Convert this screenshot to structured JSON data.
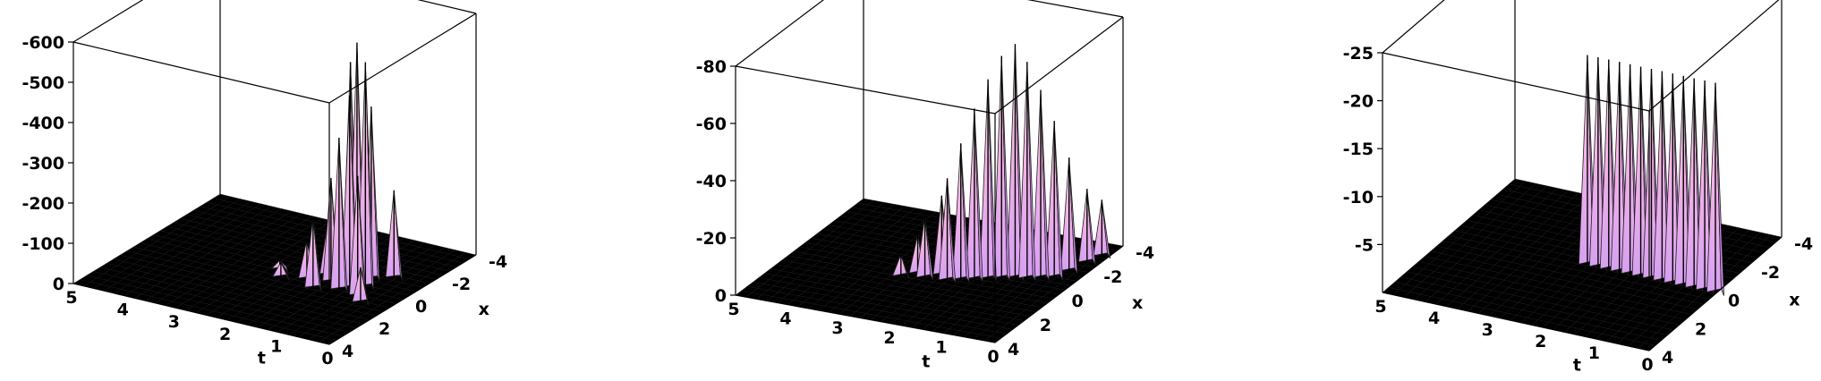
{
  "chart_data": [
    {
      "type": "surface3d",
      "t_ticks": [
        "5",
        "4",
        "3",
        "2",
        "1",
        "0"
      ],
      "x_ticks": [
        "-4",
        "-2",
        "0",
        "2",
        "4"
      ],
      "z_ticks": [
        "0",
        "-100",
        "-200",
        "-300",
        "-400",
        "-500",
        "-600"
      ],
      "t_label": "t",
      "x_label": "x",
      "t_range": [
        0,
        5
      ],
      "x_range": [
        -4,
        4
      ],
      "z_range": [
        0,
        -600
      ],
      "peaks": [
        {
          "t": 1.0,
          "x": -0.3,
          "z": -600
        },
        {
          "t": 0.8,
          "x": -0.2,
          "z": -560
        },
        {
          "t": 1.2,
          "x": -0.5,
          "z": -540
        },
        {
          "t": 1.0,
          "x": 0.1,
          "z": -480
        },
        {
          "t": 0.9,
          "x": -0.8,
          "z": -430
        },
        {
          "t": 1.1,
          "x": 0.4,
          "z": -380
        },
        {
          "t": 1.3,
          "x": -0.9,
          "z": -350
        },
        {
          "t": 0.7,
          "x": 0.5,
          "z": -300
        },
        {
          "t": 1.4,
          "x": 0.0,
          "z": -260
        },
        {
          "t": 0.6,
          "x": -1.2,
          "z": -220
        },
        {
          "t": 1.5,
          "x": 0.7,
          "z": -180
        },
        {
          "t": 1.6,
          "x": -0.4,
          "z": -140
        },
        {
          "t": 1.8,
          "x": 0.2,
          "z": -100
        },
        {
          "t": 0.5,
          "x": 0.9,
          "z": -90
        },
        {
          "t": 2.0,
          "x": -0.6,
          "z": -60
        },
        {
          "t": 2.2,
          "x": 0.5,
          "z": -40
        },
        {
          "t": 2.4,
          "x": 0.0,
          "z": -25
        }
      ]
    },
    {
      "type": "surface3d",
      "t_ticks": [
        "5",
        "4",
        "3",
        "2",
        "1",
        "0"
      ],
      "x_ticks": [
        "-4",
        "-2",
        "0",
        "2",
        "4"
      ],
      "z_ticks": [
        "0",
        "-20",
        "-40",
        "-60",
        "-80"
      ],
      "t_label": "t",
      "x_label": "x",
      "t_range": [
        0,
        5
      ],
      "x_range": [
        -4,
        4
      ],
      "z_range": [
        0,
        -80
      ],
      "peaks": [
        {
          "t": 1.0,
          "x": -0.5,
          "z": -82
        },
        {
          "t": 1.2,
          "x": -0.3,
          "z": -78
        },
        {
          "t": 0.8,
          "x": -0.6,
          "z": -76
        },
        {
          "t": 1.4,
          "x": -0.1,
          "z": -70
        },
        {
          "t": 0.6,
          "x": -0.8,
          "z": -66
        },
        {
          "t": 1.6,
          "x": 0.1,
          "z": -60
        },
        {
          "t": 0.4,
          "x": -1.0,
          "z": -55
        },
        {
          "t": 1.8,
          "x": 0.3,
          "z": -48
        },
        {
          "t": 0.3,
          "x": -1.6,
          "z": -40
        },
        {
          "t": 2.0,
          "x": 0.5,
          "z": -36
        },
        {
          "t": 2.2,
          "x": 0.2,
          "z": -28
        },
        {
          "t": 0.2,
          "x": -2.4,
          "z": -26
        },
        {
          "t": 2.4,
          "x": 0.6,
          "z": -22
        },
        {
          "t": 0.1,
          "x": -3.0,
          "z": -20
        },
        {
          "t": 2.6,
          "x": 0.4,
          "z": -14
        },
        {
          "t": 2.8,
          "x": 0.8,
          "z": -8
        }
      ]
    },
    {
      "type": "surface3d",
      "t_ticks": [
        "5",
        "4",
        "3",
        "2",
        "1",
        "0"
      ],
      "x_ticks": [
        "-4",
        "-2",
        "0",
        "2",
        "4"
      ],
      "z_ticks": [
        "-5",
        "-10",
        "-15",
        "-20",
        "-25"
      ],
      "t_label": "t",
      "x_label": "x",
      "t_range": [
        0,
        5
      ],
      "x_range": [
        -4,
        4
      ],
      "z_range": [
        0,
        -25
      ],
      "peaks": [
        {
          "t": 2.4,
          "x": 0.0,
          "z": -22
        },
        {
          "t": 2.2,
          "x": 0.0,
          "z": -22
        },
        {
          "t": 2.0,
          "x": 0.0,
          "z": -22
        },
        {
          "t": 1.8,
          "x": 0.0,
          "z": -22
        },
        {
          "t": 1.6,
          "x": 0.0,
          "z": -22
        },
        {
          "t": 1.4,
          "x": 0.0,
          "z": -22
        },
        {
          "t": 1.2,
          "x": 0.0,
          "z": -22
        },
        {
          "t": 1.0,
          "x": 0.0,
          "z": -22
        },
        {
          "t": 0.8,
          "x": 0.0,
          "z": -22
        },
        {
          "t": 0.6,
          "x": 0.0,
          "z": -22
        },
        {
          "t": 0.4,
          "x": 0.0,
          "z": -22
        },
        {
          "t": 0.2,
          "x": 0.0,
          "z": -22
        },
        {
          "t": 0.0,
          "x": 0.0,
          "z": -22
        }
      ]
    }
  ],
  "colors": {
    "surface_low": "#5ad2d8",
    "surface_mid": "#8c8cf0",
    "surface_peak": "#f0a0e0",
    "grid": "#1a1a1a"
  }
}
